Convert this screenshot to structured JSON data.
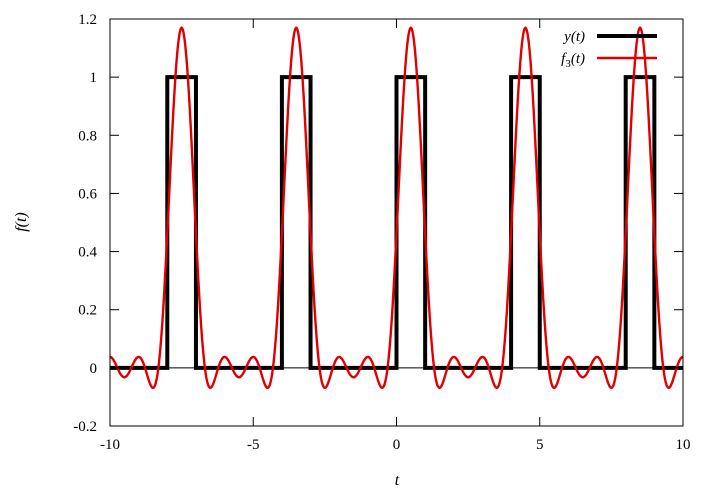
{
  "chart_data": {
    "type": "line",
    "title": "",
    "xlabel": "t",
    "ylabel": "f(t)",
    "xlim": [
      -10,
      10
    ],
    "ylim": [
      -0.2,
      1.2
    ],
    "x_ticks": [
      -10,
      -5,
      0,
      5,
      10
    ],
    "x_tick_labels": [
      "-10",
      "-5",
      "0",
      "5",
      "10"
    ],
    "y_ticks": [
      -0.2,
      0,
      0.2,
      0.4,
      0.6,
      0.8,
      1,
      1.2
    ],
    "y_tick_labels": [
      "-0.2",
      "0",
      "0.2",
      "0.4",
      "0.6",
      "0.8",
      "1",
      "1.2"
    ],
    "grid": false,
    "zero_line": true,
    "legend_position": "top-right",
    "period": 4,
    "series": [
      {
        "name": "y(t)",
        "kind": "square-pulse-train",
        "color": "#000000",
        "low": 0,
        "high": 1,
        "pulse_intervals": [
          [
            -8,
            -7
          ],
          [
            -4,
            -3
          ],
          [
            0,
            1
          ],
          [
            4,
            5
          ],
          [
            8,
            9
          ]
        ]
      },
      {
        "name": "f3(t)",
        "kind": "fourier-partial-sum",
        "color": "#e00000",
        "pulse_width": 1,
        "harmonics": 3,
        "peak_value": 1.17,
        "peak_t": [
          -7.5,
          -3.5,
          0.5,
          4.5,
          8.5
        ]
      }
    ]
  }
}
